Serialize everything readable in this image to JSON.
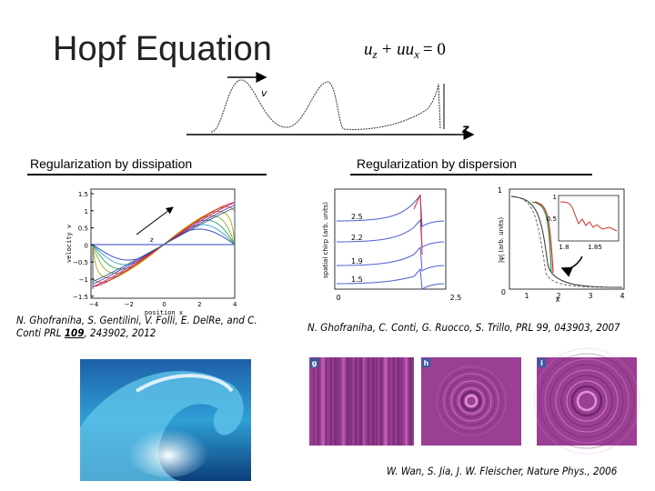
{
  "title": "Hopf Equation",
  "equation": {
    "u1": "u",
    "sub1": "z",
    "mid": "+ uu",
    "sub2": "x",
    "rhs": "= 0"
  },
  "sketch": {
    "velocity_label": "v",
    "axis_label": "z"
  },
  "left": {
    "heading": "Regularization by dissipation",
    "plot": {
      "y_label": "velocity v",
      "x_label": "position x",
      "annotation": "z",
      "yticks": [
        "1.5",
        "1",
        "0.5",
        "0",
        "−0.5",
        "−1",
        "−1.5"
      ],
      "xticks": [
        "−4",
        "−2",
        "0",
        "2",
        "4"
      ]
    },
    "citation": {
      "line1": "N. Ghofraniha, S. Gentilini, V. Folli, E. DelRe, and C.",
      "line2_start": "Conti PRL ",
      "volume": "109",
      "line2_end": ", 243902, 2012"
    }
  },
  "right": {
    "heading": "Regularization by dispersion",
    "plot1": {
      "y_label": "spatial chirp (arb. units)",
      "curve_labels": [
        "2.5",
        "2.2",
        "1.9",
        "1.5"
      ],
      "xticks": [
        "0",
        "2.5"
      ]
    },
    "plot2": {
      "y_label": "|ψ| (arb. units)",
      "x_label": "x",
      "ytick": "1",
      "origin": "0",
      "xticks": [
        "1",
        "2",
        "3",
        "4"
      ],
      "inset_yticks": [
        "1",
        "0.5"
      ],
      "inset_xticks": [
        "1.8",
        "1.85"
      ]
    },
    "citation": "N. Ghofraniha, C. Conti, G. Ruocco, S. Trillo, PRL 99, 043903, 2007"
  },
  "bottom": {
    "panels": [
      "g",
      "h",
      "i"
    ],
    "citation": "W. Wan, S. Jia, J. W. Fleischer, Nature Phys., 2006"
  }
}
